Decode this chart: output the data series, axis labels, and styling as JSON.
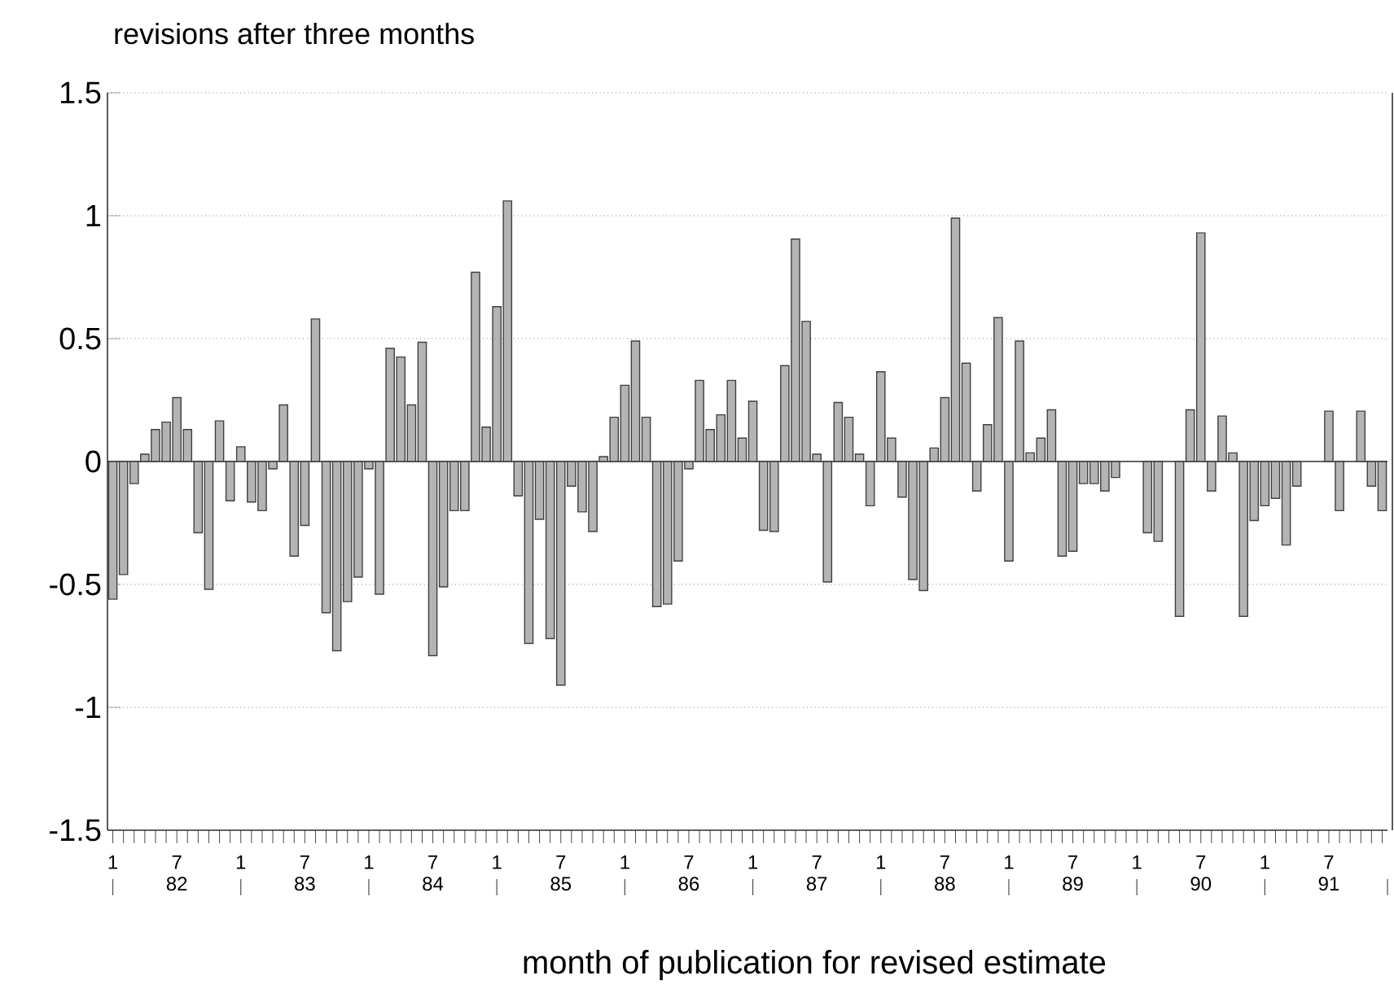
{
  "chart_data": {
    "type": "bar",
    "ylabel": "revisions after three months",
    "xlabel": "month of publication for revised estimate",
    "categories": [
      "1",
      null,
      null,
      null,
      null,
      null,
      "7",
      null,
      null,
      null,
      null,
      null,
      "1",
      null,
      null,
      null,
      null,
      null,
      "7",
      null,
      null,
      null,
      null,
      null,
      "1",
      null,
      null,
      null,
      null,
      null,
      "7",
      null,
      null,
      null,
      null,
      null,
      "1",
      null,
      null,
      null,
      null,
      null,
      "7",
      null,
      null,
      null,
      null,
      null,
      "1",
      null,
      null,
      null,
      null,
      null,
      "7",
      null,
      null,
      null,
      null,
      null,
      "1",
      null,
      null,
      null,
      null,
      null,
      "7",
      null,
      null,
      null,
      null,
      null,
      "1",
      null,
      null,
      null,
      null,
      null,
      "7",
      null,
      null,
      null,
      null,
      null,
      "1",
      null,
      null,
      null,
      null,
      null,
      "7",
      null,
      null,
      null,
      null,
      null,
      "1",
      null,
      null,
      null,
      null,
      null,
      "7",
      null,
      null,
      null,
      null,
      null,
      "1",
      null,
      null,
      null,
      null,
      null,
      "7",
      null,
      null,
      null,
      null,
      null
    ],
    "values": [
      -0.56,
      -0.46,
      -0.09,
      0.03,
      0.13,
      0.16,
      0.26,
      0.13,
      -0.29,
      -0.52,
      0.165,
      -0.16,
      0.06,
      -0.165,
      -0.2,
      -0.03,
      0.23,
      -0.385,
      -0.26,
      0.58,
      -0.615,
      -0.77,
      -0.57,
      -0.47,
      -0.03,
      -0.54,
      0.46,
      0.425,
      0.23,
      0.485,
      -0.79,
      -0.51,
      -0.2,
      -0.2,
      0.77,
      0.14,
      0.63,
      1.06,
      -0.14,
      -0.74,
      -0.235,
      -0.72,
      -0.91,
      -0.1,
      -0.205,
      -0.285,
      0.02,
      0.18,
      0.31,
      0.49,
      0.18,
      -0.59,
      -0.58,
      -0.405,
      -0.03,
      0.33,
      0.13,
      0.19,
      0.33,
      0.095,
      0.245,
      -0.28,
      -0.285,
      0.39,
      0.905,
      0.57,
      0.03,
      -0.49,
      0.24,
      0.18,
      0.03,
      -0.18,
      0.365,
      0.095,
      -0.145,
      -0.48,
      -0.525,
      0.055,
      0.26,
      0.99,
      0.4,
      -0.12,
      0.15,
      0.585,
      -0.405,
      0.49,
      0.035,
      0.095,
      0.21,
      -0.385,
      -0.365,
      -0.09,
      -0.09,
      -0.12,
      -0.065,
      null,
      null,
      -0.29,
      -0.325,
      null,
      -0.63,
      0.21,
      0.93,
      -0.12,
      0.185,
      0.035,
      -0.63,
      -0.24,
      -0.18,
      -0.15,
      -0.34,
      -0.1,
      null,
      null,
      0.205,
      -0.2,
      null,
      0.205,
      -0.1,
      -0.2
    ],
    "color": "#b4b4b4",
    "ylim": [
      -1.5,
      1.5
    ],
    "yticks": [
      -1.5,
      -1,
      -0.5,
      0,
      0.5,
      1,
      1.5
    ],
    "grid": "y",
    "annotations": [
      "82",
      "83",
      "84",
      "85",
      "86",
      "87",
      "88",
      "89",
      "90",
      "91"
    ]
  }
}
